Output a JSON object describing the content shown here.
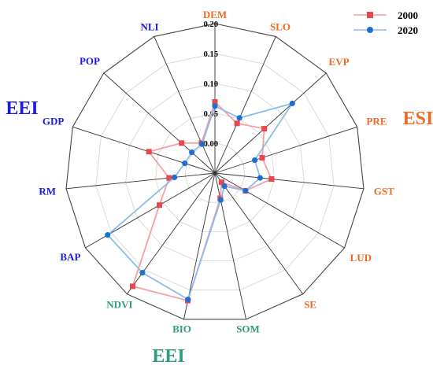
{
  "chart_data": {
    "type": "radar",
    "axes": [
      "DEM",
      "SLO",
      "EVP",
      "PRE",
      "GST",
      "LUD",
      "SE",
      "SOM",
      "BIO",
      "NDVI",
      "BAP",
      "RM",
      "GDP",
      "POP",
      "NLI"
    ],
    "axis_groups": [
      "ESI",
      "ESI",
      "ESI",
      "ESI",
      "ESI",
      "ESI",
      "ESI",
      "EEI",
      "EEI",
      "EEI",
      "EEI",
      "EEI",
      "EEI",
      "EEI",
      "EEI"
    ],
    "ticks": [
      "0.00",
      "0.05",
      "0.10",
      "0.15",
      "0.20"
    ],
    "rlim": [
      -0.05,
      0.2
    ],
    "series": [
      {
        "name": "2000",
        "color": "#e8474e",
        "line_color": "#f2a0a4",
        "marker": "square",
        "values": [
          0.069,
          0.041,
          0.061,
          0.033,
          0.045,
          0.009,
          -0.031,
          -0.007,
          0.168,
          0.184,
          0.057,
          0.027,
          0.066,
          0.025,
          0.005
        ]
      },
      {
        "name": "2020",
        "color": "#1f6fd1",
        "line_color": "#8fbbe8",
        "marker": "circle",
        "values": [
          0.062,
          0.051,
          0.124,
          0.02,
          0.026,
          0.009,
          -0.023,
          -0.004,
          0.166,
          0.156,
          0.157,
          0.018,
          0.003,
          0.002,
          0.003
        ]
      }
    ],
    "group_labels": [
      {
        "text": "ESI",
        "color": "#f06a20"
      },
      {
        "text": "EEI",
        "color": "#1a1ae0"
      },
      {
        "text": "EEI",
        "color": "#2e9d78"
      }
    ],
    "colors": {
      "ESI": "#f06a20",
      "EEI_env": "#1a1ae0",
      "EEI_eco": "#2e9d78"
    },
    "grid": true,
    "legend": "top-right"
  }
}
